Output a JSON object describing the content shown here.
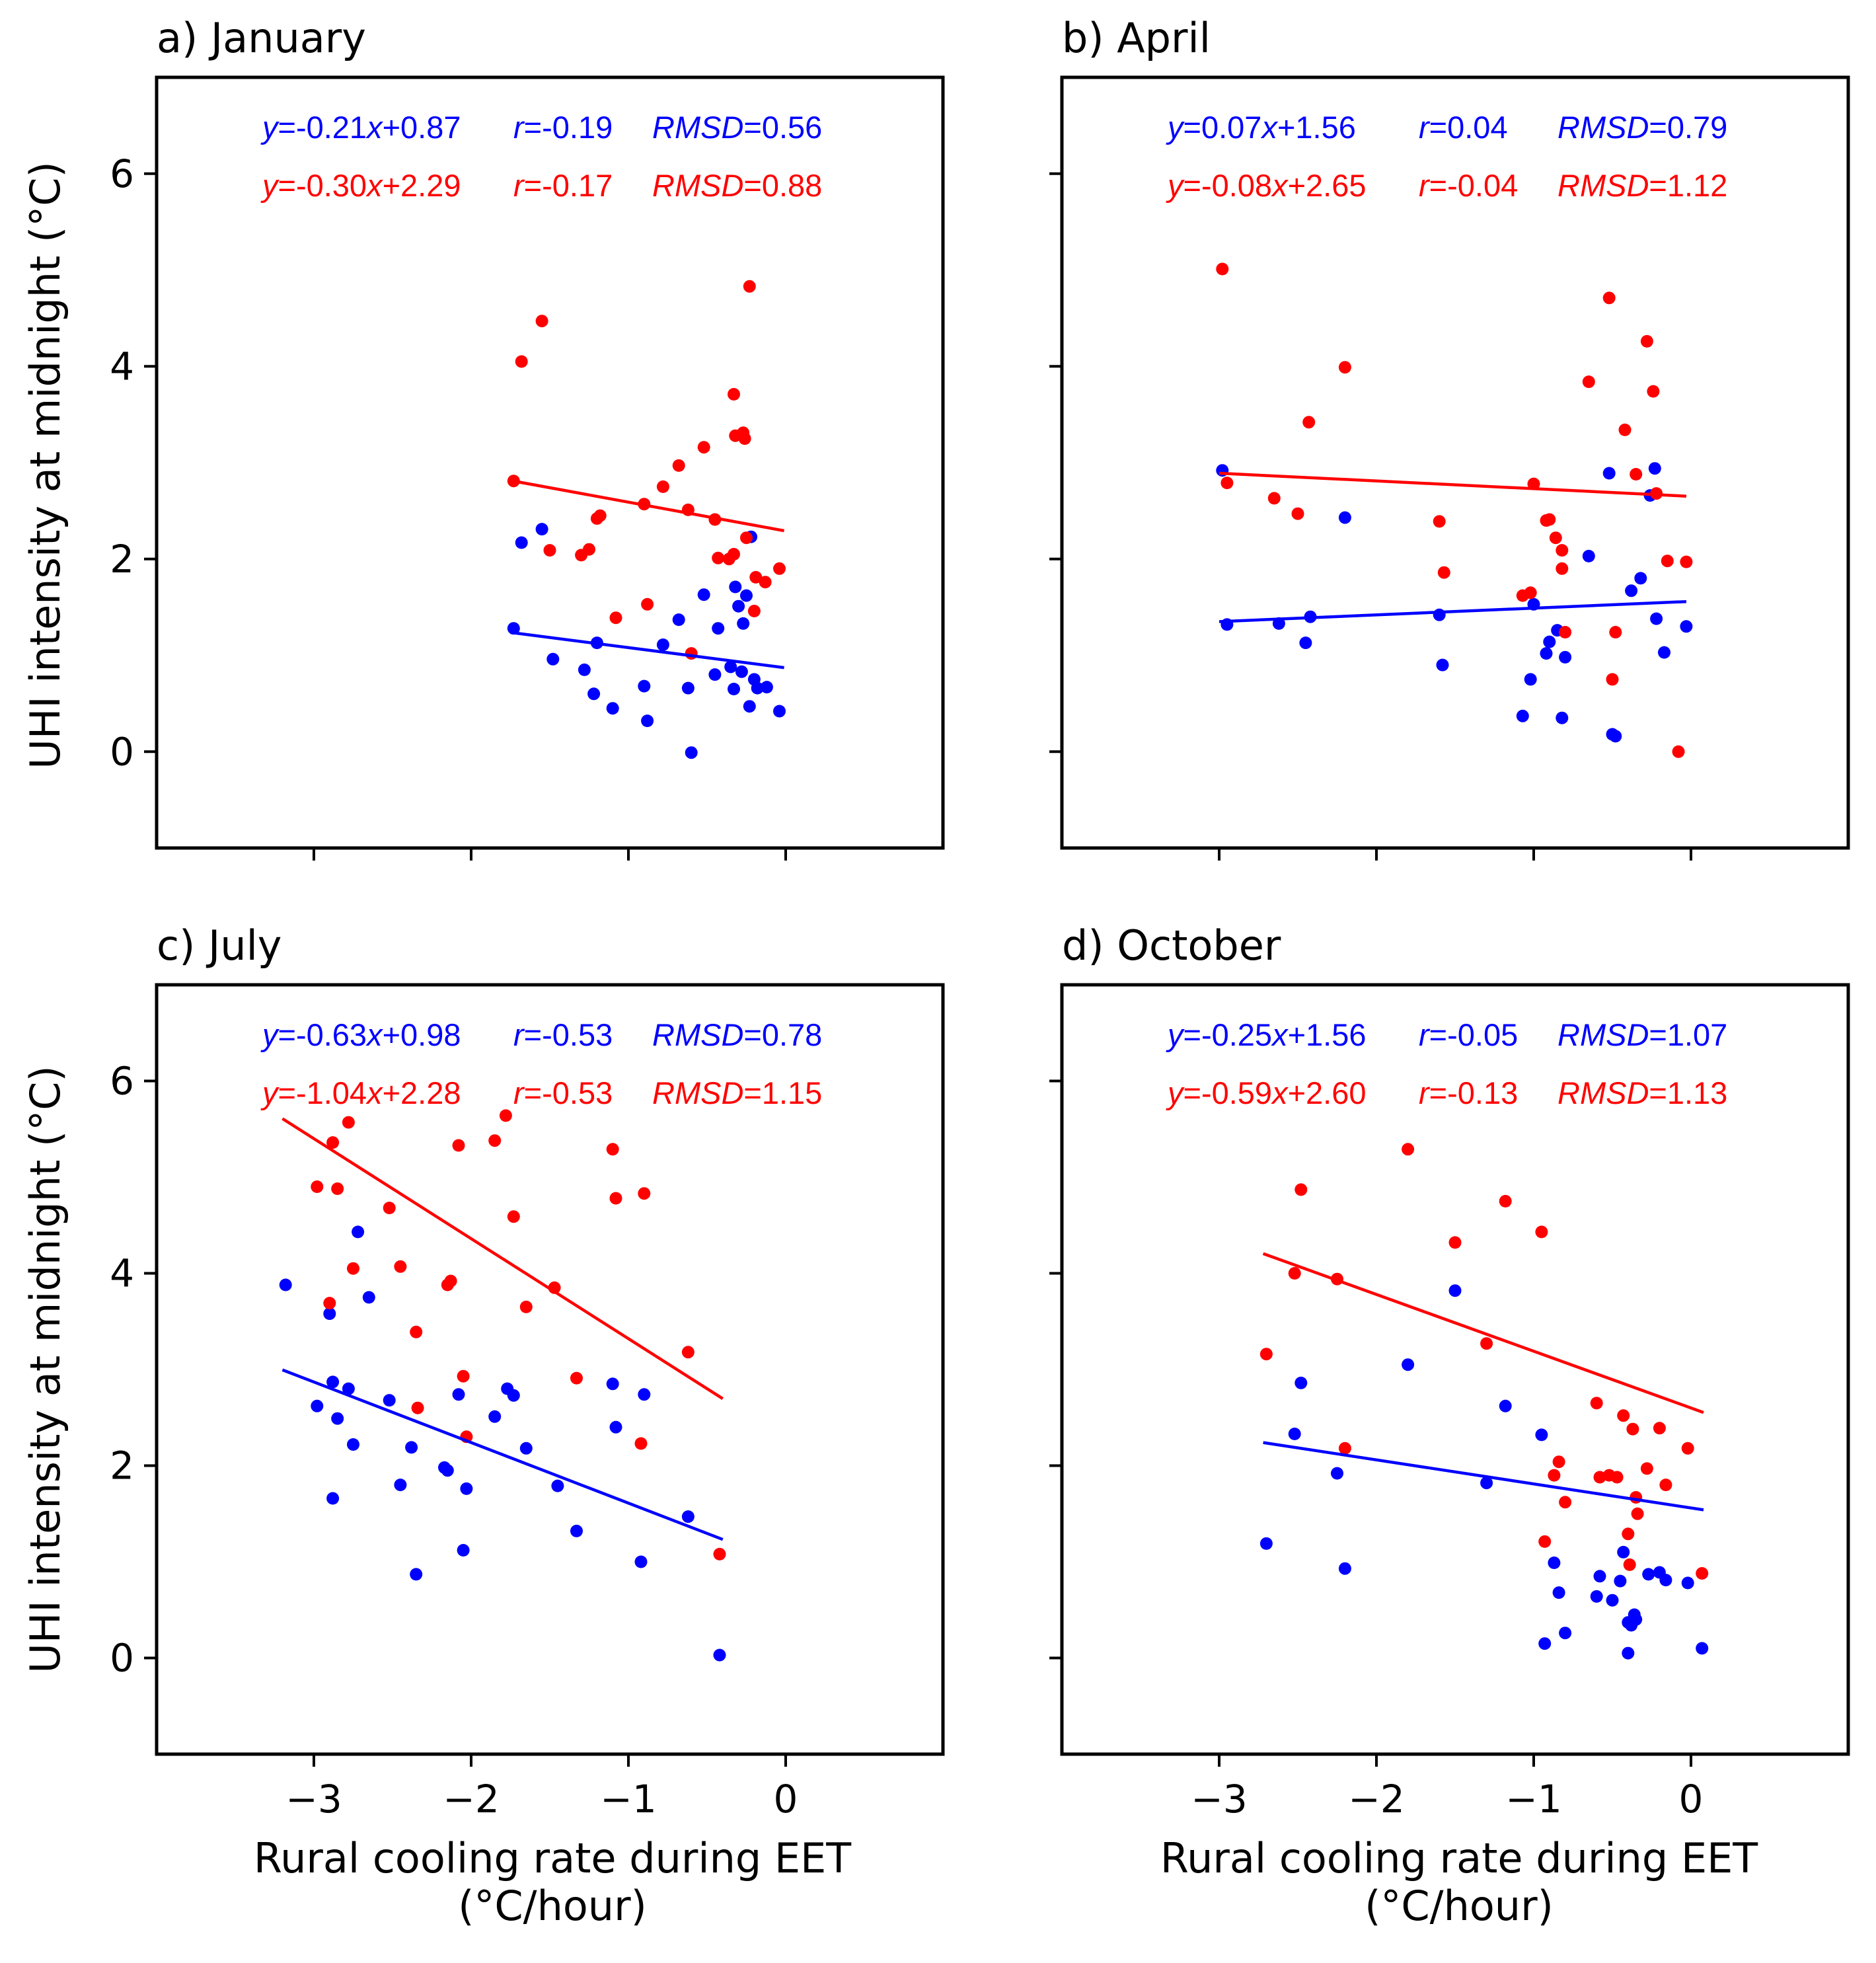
{
  "colors": {
    "blue": "#0000ff",
    "red": "#ff0000",
    "axis": "#000000"
  },
  "axes": {
    "ylabel": "UHI intensity at midnight (°C)",
    "xlabel_line1": "Rural cooling rate during EET",
    "xlabel_line2": "(°C/hour)",
    "xlim": [
      -4.0,
      1.0
    ],
    "ylim": [
      -1.0,
      7.0
    ],
    "xticks": [
      -3,
      -2,
      -1,
      0
    ],
    "xtick_labels": [
      "−3",
      "−2",
      "−1",
      "0"
    ],
    "yticks": [
      0,
      2,
      4,
      6
    ],
    "ytick_labels": [
      "0",
      "2",
      "4",
      "6"
    ]
  },
  "chart_data": [
    {
      "type": "scatter",
      "title": "a) January",
      "annotations": {
        "blue": {
          "eq": "y=-0.21x+0.87",
          "r": "r=-0.19",
          "rmsd": "RMSD=0.56"
        },
        "red": {
          "eq": "y=-0.30x+2.29",
          "r": "r=-0.17",
          "rmsd": "RMSD=0.88"
        }
      },
      "series": [
        {
          "color": "blue",
          "slope": -0.21,
          "intercept": 0.87,
          "fit_x": [
            -1.75,
            -0.01
          ],
          "points": [
            [
              -1.73,
              1.28
            ],
            [
              -1.68,
              2.17
            ],
            [
              -1.55,
              2.31
            ],
            [
              -1.48,
              0.96
            ],
            [
              -1.28,
              0.85
            ],
            [
              -1.2,
              1.13
            ],
            [
              -1.22,
              0.6
            ],
            [
              -1.1,
              0.45
            ],
            [
              -0.9,
              0.68
            ],
            [
              -0.88,
              0.32
            ],
            [
              -0.78,
              1.11
            ],
            [
              -0.68,
              1.37
            ],
            [
              -0.62,
              0.66
            ],
            [
              -0.6,
              -0.01
            ],
            [
              -0.52,
              1.63
            ],
            [
              -0.45,
              0.8
            ],
            [
              -0.43,
              1.28
            ],
            [
              -0.35,
              0.88
            ],
            [
              -0.33,
              0.65
            ],
            [
              -0.32,
              1.71
            ],
            [
              -0.3,
              1.51
            ],
            [
              -0.28,
              0.83
            ],
            [
              -0.27,
              1.33
            ],
            [
              -0.25,
              1.62
            ],
            [
              -0.22,
              2.23
            ],
            [
              -0.23,
              0.47
            ],
            [
              -0.2,
              0.75
            ],
            [
              -0.18,
              0.66
            ],
            [
              -0.12,
              0.67
            ],
            [
              -0.04,
              0.42
            ]
          ]
        },
        {
          "color": "red",
          "slope": -0.3,
          "intercept": 2.29,
          "fit_x": [
            -1.75,
            -0.01
          ],
          "points": [
            [
              -1.73,
              2.81
            ],
            [
              -1.68,
              4.05
            ],
            [
              -1.55,
              4.47
            ],
            [
              -1.5,
              2.09
            ],
            [
              -1.3,
              2.04
            ],
            [
              -1.25,
              2.1
            ],
            [
              -1.2,
              2.42
            ],
            [
              -1.18,
              2.45
            ],
            [
              -1.08,
              1.39
            ],
            [
              -0.9,
              2.57
            ],
            [
              -0.88,
              1.53
            ],
            [
              -0.78,
              2.75
            ],
            [
              -0.68,
              2.97
            ],
            [
              -0.62,
              2.51
            ],
            [
              -0.6,
              1.02
            ],
            [
              -0.52,
              3.16
            ],
            [
              -0.45,
              2.41
            ],
            [
              -0.43,
              2.01
            ],
            [
              -0.36,
              2.0
            ],
            [
              -0.33,
              2.05
            ],
            [
              -0.33,
              3.71
            ],
            [
              -0.32,
              3.28
            ],
            [
              -0.27,
              3.31
            ],
            [
              -0.26,
              3.25
            ],
            [
              -0.25,
              2.22
            ],
            [
              -0.23,
              4.83
            ],
            [
              -0.2,
              1.46
            ],
            [
              -0.19,
              1.81
            ],
            [
              -0.13,
              1.76
            ],
            [
              -0.04,
              1.9
            ]
          ]
        }
      ]
    },
    {
      "type": "scatter",
      "title": "b) April",
      "annotations": {
        "blue": {
          "eq": "y=0.07x+1.56",
          "r": "r=0.04",
          "rmsd": "RMSD=0.79"
        },
        "red": {
          "eq": "y=-0.08x+2.65",
          "r": "r=-0.04",
          "rmsd": "RMSD=1.12"
        }
      },
      "series": [
        {
          "color": "blue",
          "slope": 0.07,
          "intercept": 1.56,
          "fit_x": [
            -3.0,
            -0.03
          ],
          "points": [
            [
              -2.98,
              2.92
            ],
            [
              -2.95,
              1.32
            ],
            [
              -2.62,
              1.33
            ],
            [
              -2.45,
              1.13
            ],
            [
              -2.42,
              1.4
            ],
            [
              -2.2,
              2.43
            ],
            [
              -1.6,
              1.42
            ],
            [
              -1.58,
              0.9
            ],
            [
              -1.07,
              0.37
            ],
            [
              -1.02,
              0.75
            ],
            [
              -1.0,
              1.53
            ],
            [
              -0.92,
              1.02
            ],
            [
              -0.9,
              1.14
            ],
            [
              -0.85,
              1.26
            ],
            [
              -0.82,
              0.35
            ],
            [
              -0.8,
              0.98
            ],
            [
              -0.65,
              2.03
            ],
            [
              -0.52,
              2.89
            ],
            [
              -0.5,
              0.18
            ],
            [
              -0.48,
              0.16
            ],
            [
              -0.38,
              1.67
            ],
            [
              -0.32,
              1.8
            ],
            [
              -0.26,
              2.66
            ],
            [
              -0.23,
              2.94
            ],
            [
              -0.22,
              1.38
            ],
            [
              -0.17,
              1.03
            ],
            [
              -0.03,
              1.3
            ]
          ]
        },
        {
          "color": "red",
          "slope": -0.08,
          "intercept": 2.65,
          "fit_x": [
            -3.0,
            -0.03
          ],
          "points": [
            [
              -2.98,
              5.01
            ],
            [
              -2.95,
              2.79
            ],
            [
              -2.65,
              2.63
            ],
            [
              -2.5,
              2.47
            ],
            [
              -2.43,
              3.42
            ],
            [
              -2.2,
              3.99
            ],
            [
              -1.6,
              2.39
            ],
            [
              -1.57,
              1.86
            ],
            [
              -1.07,
              1.62
            ],
            [
              -1.02,
              1.65
            ],
            [
              -1.0,
              2.78
            ],
            [
              -0.92,
              2.4
            ],
            [
              -0.9,
              2.41
            ],
            [
              -0.86,
              2.22
            ],
            [
              -0.82,
              2.09
            ],
            [
              -0.82,
              1.9
            ],
            [
              -0.8,
              1.24
            ],
            [
              -0.65,
              3.84
            ],
            [
              -0.52,
              4.71
            ],
            [
              -0.5,
              0.75
            ],
            [
              -0.48,
              1.24
            ],
            [
              -0.42,
              3.34
            ],
            [
              -0.35,
              2.88
            ],
            [
              -0.28,
              4.26
            ],
            [
              -0.24,
              3.74
            ],
            [
              -0.22,
              2.68
            ],
            [
              -0.15,
              1.98
            ],
            [
              -0.08,
              0.0
            ],
            [
              -0.03,
              1.97
            ]
          ]
        }
      ]
    },
    {
      "type": "scatter",
      "title": "c) July",
      "annotations": {
        "blue": {
          "eq": "y=-0.63x+0.98",
          "r": "r=-0.53",
          "rmsd": "RMSD=0.78"
        },
        "red": {
          "eq": "y=-1.04x+2.28",
          "r": "r=-0.53",
          "rmsd": "RMSD=1.15"
        }
      },
      "series": [
        {
          "color": "blue",
          "slope": -0.63,
          "intercept": 0.98,
          "fit_x": [
            -3.2,
            -0.4
          ],
          "points": [
            [
              -3.18,
              3.88
            ],
            [
              -2.98,
              2.62
            ],
            [
              -2.9,
              3.58
            ],
            [
              -2.88,
              2.87
            ],
            [
              -2.88,
              1.66
            ],
            [
              -2.85,
              2.49
            ],
            [
              -2.78,
              2.8
            ],
            [
              -2.75,
              2.22
            ],
            [
              -2.72,
              4.43
            ],
            [
              -2.65,
              3.75
            ],
            [
              -2.52,
              2.68
            ],
            [
              -2.45,
              1.8
            ],
            [
              -2.38,
              2.19
            ],
            [
              -2.35,
              0.87
            ],
            [
              -2.17,
              1.98
            ],
            [
              -2.15,
              1.95
            ],
            [
              -2.08,
              2.74
            ],
            [
              -2.05,
              1.12
            ],
            [
              -2.03,
              1.76
            ],
            [
              -1.85,
              2.51
            ],
            [
              -1.77,
              2.8
            ],
            [
              -1.73,
              2.73
            ],
            [
              -1.65,
              2.18
            ],
            [
              -1.45,
              1.79
            ],
            [
              -1.33,
              1.32
            ],
            [
              -1.1,
              2.85
            ],
            [
              -1.08,
              2.4
            ],
            [
              -0.92,
              1.0
            ],
            [
              -0.9,
              2.74
            ],
            [
              -0.62,
              1.47
            ],
            [
              -0.42,
              0.03
            ]
          ]
        },
        {
          "color": "red",
          "slope": -1.04,
          "intercept": 2.28,
          "fit_x": [
            -3.2,
            -0.4
          ],
          "points": [
            [
              -2.98,
              4.9
            ],
            [
              -2.9,
              3.69
            ],
            [
              -2.88,
              5.36
            ],
            [
              -2.85,
              4.88
            ],
            [
              -2.78,
              5.57
            ],
            [
              -2.75,
              4.05
            ],
            [
              -2.52,
              4.68
            ],
            [
              -2.45,
              4.07
            ],
            [
              -2.35,
              3.39
            ],
            [
              -2.34,
              2.6
            ],
            [
              -2.15,
              3.88
            ],
            [
              -2.13,
              3.92
            ],
            [
              -2.08,
              5.33
            ],
            [
              -2.05,
              2.93
            ],
            [
              -2.03,
              2.3
            ],
            [
              -1.85,
              5.38
            ],
            [
              -1.78,
              5.64
            ],
            [
              -1.73,
              4.59
            ],
            [
              -1.65,
              3.65
            ],
            [
              -1.47,
              3.85
            ],
            [
              -1.33,
              2.91
            ],
            [
              -1.1,
              5.29
            ],
            [
              -1.08,
              4.78
            ],
            [
              -0.92,
              2.23
            ],
            [
              -0.9,
              4.83
            ],
            [
              -0.62,
              3.18
            ],
            [
              -0.42,
              1.08
            ]
          ]
        }
      ]
    },
    {
      "type": "scatter",
      "title": "d) October",
      "annotations": {
        "blue": {
          "eq": "y=-0.25x+1.56",
          "r": "r=-0.05",
          "rmsd": "RMSD=1.07"
        },
        "red": {
          "eq": "y=-0.59x+2.60",
          "r": "r=-0.13",
          "rmsd": "RMSD=1.13"
        }
      },
      "series": [
        {
          "color": "blue",
          "slope": -0.25,
          "intercept": 1.56,
          "fit_x": [
            -2.72,
            0.08
          ],
          "points": [
            [
              -2.7,
              1.19
            ],
            [
              -2.52,
              2.33
            ],
            [
              -2.48,
              2.86
            ],
            [
              -2.25,
              1.92
            ],
            [
              -2.2,
              0.93
            ],
            [
              -1.8,
              3.05
            ],
            [
              -1.5,
              3.82
            ],
            [
              -1.3,
              1.82
            ],
            [
              -1.18,
              2.62
            ],
            [
              -0.95,
              2.32
            ],
            [
              -0.93,
              0.15
            ],
            [
              -0.87,
              0.99
            ],
            [
              -0.84,
              0.68
            ],
            [
              -0.8,
              0.26
            ],
            [
              -0.6,
              0.64
            ],
            [
              -0.58,
              0.85
            ],
            [
              -0.5,
              0.6
            ],
            [
              -0.45,
              0.8
            ],
            [
              -0.43,
              1.1
            ],
            [
              -0.4,
              0.37
            ],
            [
              -0.4,
              0.05
            ],
            [
              -0.38,
              0.34
            ],
            [
              -0.36,
              0.45
            ],
            [
              -0.35,
              0.4
            ],
            [
              -0.27,
              0.87
            ],
            [
              -0.2,
              0.89
            ],
            [
              -0.16,
              0.81
            ],
            [
              -0.02,
              0.78
            ],
            [
              0.07,
              0.1
            ]
          ]
        },
        {
          "color": "red",
          "slope": -0.59,
          "intercept": 2.6,
          "fit_x": [
            -2.72,
            0.08
          ],
          "points": [
            [
              -2.7,
              3.16
            ],
            [
              -2.52,
              4.0
            ],
            [
              -2.48,
              4.87
            ],
            [
              -2.25,
              3.94
            ],
            [
              -2.2,
              2.18
            ],
            [
              -1.8,
              5.29
            ],
            [
              -1.5,
              4.32
            ],
            [
              -1.3,
              3.27
            ],
            [
              -1.18,
              4.75
            ],
            [
              -0.95,
              4.43
            ],
            [
              -0.93,
              1.21
            ],
            [
              -0.87,
              1.9
            ],
            [
              -0.84,
              2.04
            ],
            [
              -0.8,
              1.62
            ],
            [
              -0.6,
              2.65
            ],
            [
              -0.58,
              1.88
            ],
            [
              -0.52,
              1.9
            ],
            [
              -0.47,
              1.88
            ],
            [
              -0.43,
              2.52
            ],
            [
              -0.4,
              1.29
            ],
            [
              -0.39,
              0.97
            ],
            [
              -0.37,
              2.38
            ],
            [
              -0.35,
              1.67
            ],
            [
              -0.34,
              1.5
            ],
            [
              -0.28,
              1.97
            ],
            [
              -0.2,
              2.39
            ],
            [
              -0.16,
              1.8
            ],
            [
              -0.02,
              2.18
            ],
            [
              0.07,
              0.88
            ]
          ]
        }
      ]
    }
  ]
}
